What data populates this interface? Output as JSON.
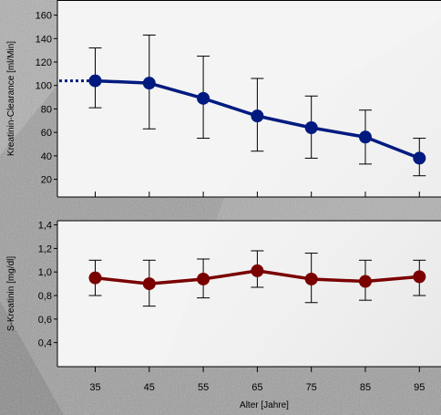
{
  "chart_data": [
    {
      "type": "line",
      "ylabel": "Kreatinin-Clearance [ml/Min]",
      "ylim": [
        8,
        162
      ],
      "yticks": [
        20,
        40,
        60,
        80,
        100,
        120,
        140,
        160
      ],
      "ytick_labels": [
        "20",
        "40",
        "60",
        "80",
        "100",
        "120",
        "140",
        "160"
      ],
      "x": [
        35,
        45,
        55,
        65,
        75,
        85,
        95
      ],
      "series": [
        {
          "values": [
            104,
            102,
            89,
            74,
            64,
            56,
            38
          ],
          "error_low": [
            81,
            63,
            55,
            44,
            38,
            33,
            23
          ],
          "error_high": [
            132,
            143,
            125,
            106,
            91,
            79,
            55
          ],
          "color": "#001a80",
          "dotted_lead_in": true
        }
      ],
      "grid": false
    },
    {
      "type": "line",
      "ylabel": "S-Kreatinin [mg/dl]",
      "ylim": [
        0.25,
        1.42
      ],
      "yticks": [
        0.4,
        0.6,
        0.8,
        1.0,
        1.2,
        1.4
      ],
      "ytick_labels": [
        "0,4",
        "0,6",
        "0,8",
        "1,0",
        "1,2",
        "1,4"
      ],
      "x": [
        35,
        45,
        55,
        65,
        75,
        85,
        95
      ],
      "series": [
        {
          "values": [
            0.95,
            0.9,
            0.94,
            1.01,
            0.94,
            0.92,
            0.96
          ],
          "error_low": [
            0.8,
            0.71,
            0.78,
            0.87,
            0.74,
            0.76,
            0.8
          ],
          "error_high": [
            1.1,
            1.1,
            1.11,
            1.18,
            1.16,
            1.1,
            1.1
          ],
          "color": "#7a0000"
        }
      ],
      "grid": false
    }
  ],
  "x_axis": {
    "label": "Alter [Jahre]",
    "tick_labels": [
      "35",
      "45",
      "55",
      "65",
      "75",
      "85",
      "95"
    ],
    "xlim": [
      28,
      99
    ]
  },
  "colors": {
    "panel_background": "#f4f4f4",
    "page_background": "#9a9a9a"
  }
}
